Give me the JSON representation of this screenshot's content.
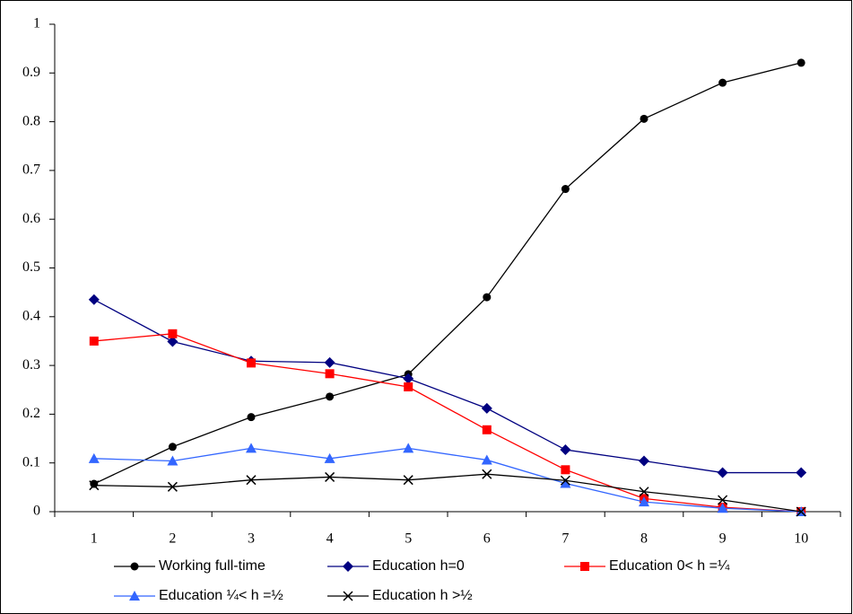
{
  "chart_data": {
    "type": "line",
    "categories": [
      "1",
      "2",
      "3",
      "4",
      "5",
      "6",
      "7",
      "8",
      "9",
      "10"
    ],
    "series": [
      {
        "name": "Working full-time",
        "color": "#000000",
        "marker": "circle",
        "values": [
          0.057,
          0.133,
          0.194,
          0.236,
          0.282,
          0.44,
          0.662,
          0.806,
          0.88,
          0.921
        ]
      },
      {
        "name": "Education h=0",
        "color": "#000080",
        "marker": "diamond",
        "values": [
          0.435,
          0.349,
          0.309,
          0.306,
          0.273,
          0.212,
          0.127,
          0.104,
          0.08,
          0.08
        ]
      },
      {
        "name": "Education 0< h =¼",
        "color": "#ff0000",
        "marker": "square",
        "values": [
          0.35,
          0.365,
          0.305,
          0.283,
          0.256,
          0.168,
          0.086,
          0.027,
          0.009,
          0.0
        ]
      },
      {
        "name": "Education ¼< h =½",
        "color": "#3366ff",
        "marker": "triangle",
        "values": [
          0.109,
          0.104,
          0.13,
          0.109,
          0.13,
          0.106,
          0.058,
          0.02,
          0.007,
          0.0
        ]
      },
      {
        "name": "Education h >½",
        "color": "#000000",
        "marker": "x",
        "values": [
          0.054,
          0.051,
          0.065,
          0.071,
          0.065,
          0.077,
          0.064,
          0.041,
          0.024,
          0.0
        ]
      }
    ],
    "ylim": [
      0,
      1
    ],
    "yticks": [
      0,
      0.1,
      0.2,
      0.3,
      0.4,
      0.5,
      0.6,
      0.7,
      0.8,
      0.9,
      1
    ],
    "grid": false,
    "legend": "bottom"
  }
}
